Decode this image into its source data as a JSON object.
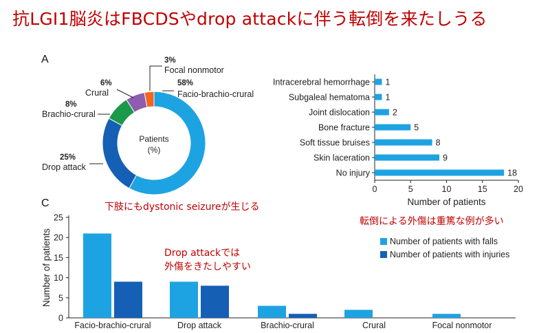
{
  "slide": {
    "title": "抗LGI1脳炎はFBCDSやdrop attackに伴う転倒を来たしうる",
    "notes": {
      "dystonic": "下肢にもdystonic seizureが生じる",
      "drop_attack_line1": "Drop attackでは",
      "drop_attack_line2": "外傷をきたしやすい",
      "injuries": "転倒による外傷は重篤な例が多い"
    }
  },
  "colors": {
    "title_red": "#c00000",
    "light_blue": "#1ea3e2",
    "dark_blue": "#1560b5",
    "green": "#1a9a4a",
    "purple": "#8e5cb0",
    "orange": "#f26522"
  },
  "chart_data": [
    {
      "id": "A",
      "type": "pie",
      "panel_label": "A",
      "center_label": [
        "Patients",
        "(%)"
      ],
      "slices": [
        {
          "label": "Facio-brachio-crural",
          "pct_label": "58%",
          "value": 58,
          "color": "#1ea3e2"
        },
        {
          "label": "Drop attack",
          "pct_label": "25%",
          "value": 25,
          "color": "#1560b5"
        },
        {
          "label": "Brachio-crural",
          "pct_label": "8%",
          "value": 8,
          "color": "#1a9a4a"
        },
        {
          "label": "Crural",
          "pct_label": "6%",
          "value": 6,
          "color": "#8e5cb0"
        },
        {
          "label": "Focal nonmotor",
          "pct_label": "3%",
          "value": 3,
          "color": "#f26522"
        }
      ]
    },
    {
      "id": "B",
      "type": "bar",
      "orientation": "horizontal",
      "categories": [
        "Intracerebral hemorrhage",
        "Subgaleal hematoma",
        "Joint dislocation",
        "Bone fracture",
        "Soft tissue bruises",
        "Skin laceration",
        "No injury"
      ],
      "values": [
        1,
        1,
        2,
        5,
        8,
        9,
        18
      ],
      "value_labels": [
        "1",
        "1",
        "2",
        "5",
        "8",
        "9",
        "18"
      ],
      "xlabel": "Number of patients",
      "xlim": [
        0,
        20
      ],
      "xticks": [
        0,
        5,
        10,
        15,
        20
      ],
      "xtick_labels": [
        "0",
        "5",
        "10",
        "15",
        "20"
      ],
      "color": "#1ea3e2"
    },
    {
      "id": "C",
      "type": "bar",
      "panel_label": "C",
      "categories": [
        "Facio-brachio-crural",
        "Drop attack",
        "Brachio-crural",
        "Crural",
        "Focal nonmotor"
      ],
      "series": [
        {
          "name": "Number of patients with falls",
          "values": [
            21,
            9,
            3,
            2,
            1
          ],
          "color": "#1ea3e2"
        },
        {
          "name": "Number of patients with injuries",
          "values": [
            9,
            8,
            1,
            0,
            0
          ],
          "color": "#1560b5"
        }
      ],
      "ylabel": "Number of patients",
      "ylim": [
        0,
        25
      ],
      "yticks": [
        0,
        5,
        10,
        15,
        20,
        25
      ],
      "ytick_labels": [
        "0",
        "5",
        "10",
        "15",
        "20",
        "25"
      ],
      "legend": "inside-right"
    }
  ]
}
